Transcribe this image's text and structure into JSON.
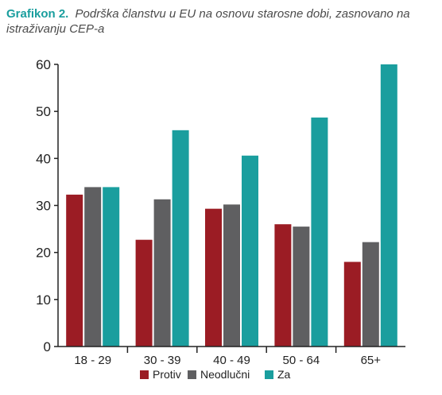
{
  "figure": {
    "label": "Grafikon 2.",
    "caption": "Podrška članstvu u EU na osnovu starosne dobi, zasnovano na istraživanju CEP-a"
  },
  "colors": {
    "protiv": "#9b1c24",
    "neodlucni": "#5f5f61",
    "za": "#1a9e9e",
    "axis": "#222222",
    "text": "#222222"
  },
  "chart_data": {
    "type": "bar",
    "categories": [
      "18 - 29",
      "30 - 39",
      "40 - 49",
      "50 - 64",
      "65+"
    ],
    "series": [
      {
        "name": "Protiv",
        "values": [
          32.3,
          22.7,
          29.3,
          26.0,
          18.0
        ]
      },
      {
        "name": "Neodlučni",
        "values": [
          33.9,
          31.3,
          30.2,
          25.5,
          22.2
        ]
      },
      {
        "name": "Za",
        "values": [
          33.9,
          46.0,
          40.6,
          48.7,
          60.0
        ]
      }
    ],
    "ylim": [
      0,
      60
    ],
    "yticks": [
      "0",
      "10",
      "20",
      "30",
      "40",
      "50",
      "60"
    ],
    "grid": false,
    "legend": "bottom"
  }
}
